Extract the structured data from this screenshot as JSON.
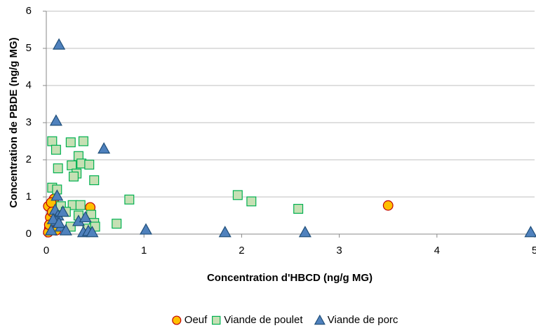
{
  "chart_data": {
    "type": "scatter",
    "xlabel": "Concentration d'HBCD  (ng/g MG)",
    "ylabel": "Concentration de PBDE  (ng/g MG)",
    "xlim": [
      0,
      5
    ],
    "xticks": [
      0,
      1,
      2,
      3,
      4,
      5
    ],
    "ylim": [
      0,
      6
    ],
    "yticks": [
      0,
      1,
      2,
      3,
      4,
      5,
      6
    ],
    "grid": true,
    "legend": "bottom",
    "series": [
      {
        "name": "Oeuf",
        "marker": "circle",
        "color": "#ffc000",
        "edgecolor": "#c00000",
        "x": [
          0.02,
          0.03,
          0.05,
          0.02,
          0.04,
          0.06,
          0.08,
          0.03,
          0.1,
          0.05,
          0.45,
          3.5
        ],
        "values": [
          0.75,
          0.15,
          0.3,
          0.05,
          0.45,
          0.6,
          0.95,
          0.25,
          0.1,
          0.85,
          0.72,
          0.77
        ]
      },
      {
        "name": "Viande de poulet",
        "marker": "square",
        "color": "#c6e0b4",
        "edgecolor": "#00b050",
        "x": [
          0.06,
          0.1,
          0.12,
          0.25,
          0.38,
          0.33,
          0.26,
          0.31,
          0.28,
          0.36,
          0.44,
          0.49,
          0.06,
          0.11,
          0.27,
          0.35,
          0.15,
          0.2,
          0.46,
          0.49,
          0.25,
          0.33,
          0.72,
          0.85,
          1.96,
          2.1,
          2.58,
          0.42,
          0.5
        ],
        "values": [
          2.5,
          2.27,
          1.77,
          2.47,
          2.5,
          2.1,
          1.85,
          1.63,
          1.55,
          1.9,
          1.87,
          1.45,
          1.25,
          1.2,
          0.78,
          0.78,
          0.75,
          0.6,
          0.52,
          0.3,
          0.2,
          0.5,
          0.28,
          0.93,
          1.05,
          0.88,
          0.68,
          0.15,
          0.2
        ]
      },
      {
        "name": "Viande de porc",
        "marker": "triangle",
        "color": "#4f81bd",
        "edgecolor": "#1f4e79",
        "x": [
          0.13,
          0.1,
          0.59,
          0.11,
          0.09,
          0.12,
          0.17,
          0.05,
          0.1,
          0.15,
          0.2,
          0.33,
          0.4,
          0.38,
          0.43,
          0.47,
          1.02,
          1.83,
          2.65,
          4.96,
          0.07,
          0.13
        ],
        "values": [
          5.1,
          3.05,
          2.3,
          1.03,
          0.65,
          0.5,
          0.6,
          0.1,
          0.35,
          0.2,
          0.1,
          0.35,
          0.45,
          0.05,
          0.08,
          0.05,
          0.12,
          0.05,
          0.05,
          0.05,
          0.4,
          0.3
        ]
      }
    ]
  }
}
